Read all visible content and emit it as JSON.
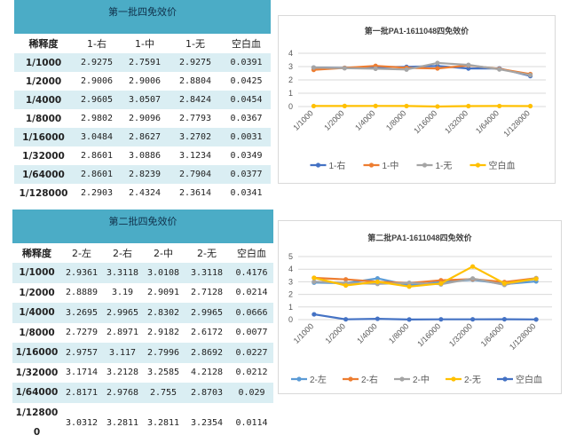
{
  "table1": {
    "title": "第一批四免效价",
    "headers": [
      "稀释度",
      "1-右",
      "1-中",
      "1-无",
      "空白血"
    ],
    "rows": [
      [
        "1/1000",
        "2.9275",
        "2.7591",
        "2.9275",
        "0.0391"
      ],
      [
        "1/2000",
        "2.9006",
        "2.9006",
        "2.8804",
        "0.0425"
      ],
      [
        "1/4000",
        "2.9605",
        "3.0507",
        "2.8424",
        "0.0454"
      ],
      [
        "1/8000",
        "2.9802",
        "2.9096",
        "2.7793",
        "0.0367"
      ],
      [
        "1/16000",
        "3.0484",
        "2.8627",
        "3.2702",
        "0.0031"
      ],
      [
        "1/32000",
        "2.8601",
        "3.0886",
        "3.1234",
        "0.0349"
      ],
      [
        "1/64000",
        "2.8601",
        "2.8239",
        "2.7904",
        "0.0377"
      ],
      [
        "1/128000",
        "2.2903",
        "2.4324",
        "2.3614",
        "0.0341"
      ]
    ]
  },
  "table2": {
    "title": "第二批四免效价",
    "headers": [
      "稀释度",
      "2-左",
      "2-右",
      "2-中",
      "2-无",
      "空白血"
    ],
    "rows": [
      [
        "1/1000",
        "2.9361",
        "3.3118",
        "3.0108",
        "3.3118",
        "0.4176"
      ],
      [
        "1/2000",
        "2.8889",
        "3.19",
        "2.9091",
        "2.7128",
        "0.0214"
      ],
      [
        "1/4000",
        "3.2695",
        "2.9965",
        "2.8302",
        "2.9965",
        "0.0666"
      ],
      [
        "1/8000",
        "2.7279",
        "2.8971",
        "2.9182",
        "2.6172",
        "0.0077"
      ],
      [
        "1/16000",
        "2.9757",
        "3.117",
        "2.7996",
        "2.8692",
        "0.0227"
      ],
      [
        "1/32000",
        "3.1714",
        "3.2128",
        "3.2585",
        "4.2128",
        "0.0212"
      ],
      [
        "1/64000",
        "2.8171",
        "2.9768",
        "2.755",
        "2.8703",
        "0.029"
      ],
      [
        "1/12800\n0",
        "3.0312",
        "3.2811",
        "3.2811",
        "3.2354",
        "0.0114"
      ]
    ]
  },
  "chart_data": [
    {
      "type": "line",
      "title": "第一批PA1-1611048四免效价",
      "categories": [
        "1/1000",
        "1/2000",
        "1/4000",
        "1/8000",
        "1/16000",
        "1/32000",
        "1/64000",
        "1/128000"
      ],
      "ylim": [
        0,
        4
      ],
      "yticks": [
        "0",
        "1",
        "2",
        "3",
        "4"
      ],
      "grid": true,
      "legend_position": "bottom",
      "series": [
        {
          "name": "1-右",
          "color": "#4472c4",
          "values": [
            2.9275,
            2.9006,
            2.9605,
            2.9802,
            3.0484,
            2.8601,
            2.8601,
            2.2903
          ]
        },
        {
          "name": "1-中",
          "color": "#ed7d31",
          "values": [
            2.7591,
            2.9006,
            3.0507,
            2.9096,
            2.8627,
            3.0886,
            2.8239,
            2.4324
          ]
        },
        {
          "name": "1-无",
          "color": "#a5a5a5",
          "values": [
            2.9275,
            2.8804,
            2.8424,
            2.7793,
            3.2702,
            3.1234,
            2.7904,
            2.3614
          ]
        },
        {
          "name": "空白血",
          "color": "#ffc000",
          "values": [
            0.0391,
            0.0425,
            0.0454,
            0.0367,
            0.0031,
            0.0349,
            0.0377,
            0.0341
          ]
        }
      ]
    },
    {
      "type": "line",
      "title": "第二批PA1-1611048四免效价",
      "categories": [
        "1/1000",
        "1/2000",
        "1/4000",
        "1/8000",
        "1/16000",
        "1/32000",
        "1/64000",
        "1/128000"
      ],
      "ylim": [
        0,
        5
      ],
      "yticks": [
        "0",
        "1",
        "2",
        "3",
        "4",
        "5"
      ],
      "grid": true,
      "legend_position": "bottom",
      "series": [
        {
          "name": "2-左",
          "color": "#5b9bd5",
          "values": [
            2.9361,
            2.8889,
            3.2695,
            2.7279,
            2.9757,
            3.1714,
            2.8171,
            3.0312
          ]
        },
        {
          "name": "2-右",
          "color": "#ed7d31",
          "values": [
            3.3118,
            3.19,
            2.9965,
            2.8971,
            3.117,
            3.2128,
            2.9768,
            3.2811
          ]
        },
        {
          "name": "2-中",
          "color": "#a5a5a5",
          "values": [
            3.0108,
            2.9091,
            2.8302,
            2.9182,
            2.7996,
            3.2585,
            2.755,
            3.2811
          ]
        },
        {
          "name": "2-无",
          "color": "#ffc000",
          "values": [
            3.3118,
            2.7128,
            2.9965,
            2.6172,
            2.8692,
            4.2128,
            2.8703,
            3.2354
          ]
        },
        {
          "name": "空白血",
          "color": "#4472c4",
          "values": [
            0.4176,
            0.0214,
            0.0666,
            0.0077,
            0.0227,
            0.0212,
            0.029,
            0.0114
          ]
        }
      ]
    }
  ]
}
